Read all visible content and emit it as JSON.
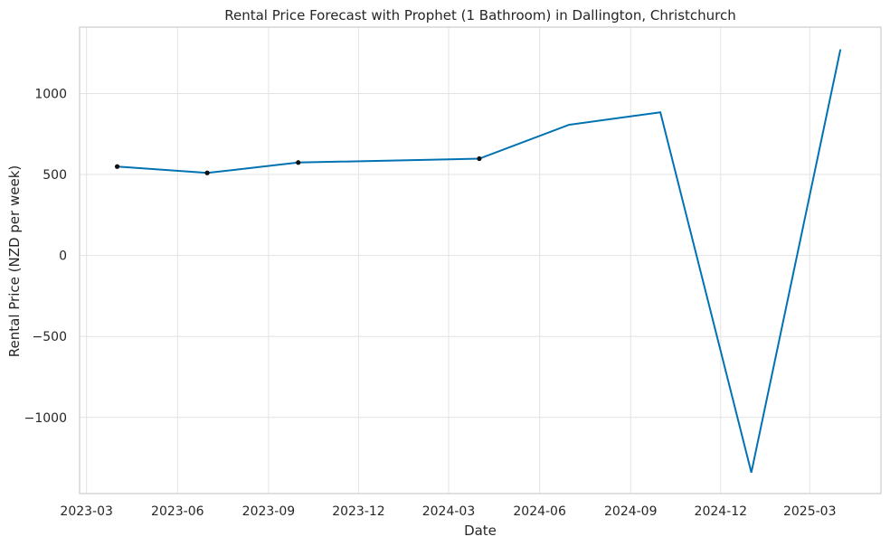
{
  "chart_data": {
    "type": "line",
    "title": "Rental Price Forecast with Prophet (1 Bathroom) in Dallington, Christchurch",
    "xlabel": "Date",
    "ylabel": "Rental Price (NZD per week)",
    "x_ticks": [
      "2023-03",
      "2023-06",
      "2023-09",
      "2023-12",
      "2024-03",
      "2024-06",
      "2024-09",
      "2024-12",
      "2025-03"
    ],
    "y_ticks": [
      -1000,
      -500,
      0,
      500,
      1000
    ],
    "xlim": [
      "2023-02-22",
      "2025-05-12"
    ],
    "ylim": [
      -1470,
      1410
    ],
    "grid": true,
    "series": [
      {
        "color": "#0072b2",
        "x": [
          "2023-04-01",
          "2023-07-01",
          "2023-10-01",
          "2024-04-01",
          "2024-07-01",
          "2024-10-01",
          "2025-01-01",
          "2025-04-01"
        ],
        "values": [
          549,
          510,
          574,
          598,
          807,
          884,
          -1340,
          1272
        ]
      }
    ],
    "observed_points": {
      "color": "#111111",
      "x": [
        "2023-04-01",
        "2023-07-01",
        "2023-10-01",
        "2024-04-01"
      ],
      "values": [
        549,
        510,
        574,
        598
      ]
    }
  }
}
